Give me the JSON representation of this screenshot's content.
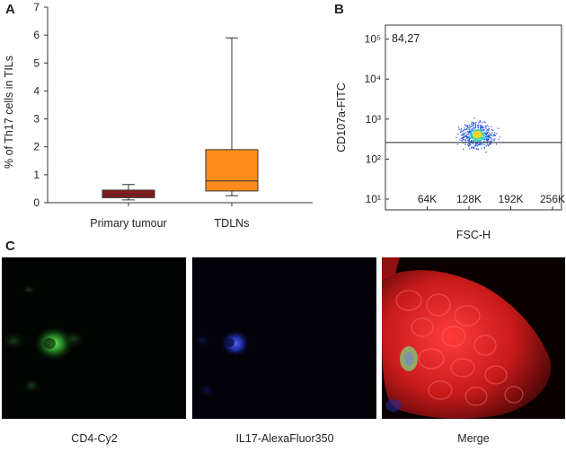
{
  "figure": {
    "panels": {
      "a": "A",
      "b": "B",
      "c": "C"
    }
  },
  "chart_data": [
    {
      "type": "boxplot",
      "panel": "A",
      "ylabel": "% of Th17 cells in TILs",
      "xlabel": "",
      "ylim": [
        0,
        7
      ],
      "yticks": [
        "0",
        "1",
        "2",
        "3",
        "4",
        "5",
        "6",
        "7"
      ],
      "categories": [
        "Primary tumour",
        "TDLNs"
      ],
      "boxes": [
        {
          "category": "Primary tumour",
          "min": 0.1,
          "q1": 0.18,
          "median": 0.3,
          "q3": 0.45,
          "max": 0.65,
          "color": "#8B1A1A"
        },
        {
          "category": "TDLNs",
          "min": 0.25,
          "q1": 0.42,
          "median": 0.78,
          "q3": 1.9,
          "max": 5.9,
          "color": "#FF8C1A"
        }
      ],
      "grid": false
    },
    {
      "type": "scatter",
      "panel": "B",
      "xlabel": "FSC-H",
      "ylabel": "CD107a-FITC",
      "xlim": [
        0,
        256000
      ],
      "ylim": [
        10,
        100000
      ],
      "yscale": "log",
      "xticks": [
        "64K",
        "128K",
        "192K",
        "256K"
      ],
      "yticks": [
        "10¹",
        "10²",
        "10³",
        "10⁴",
        "10⁵"
      ],
      "gate_threshold_y": 260,
      "gate_percentage": "84,27",
      "population_center": {
        "x": 140000,
        "y": 400
      },
      "grid": false
    }
  ],
  "micrographs": [
    {
      "caption": "CD4-Cy2",
      "stain_color": "#2EAA2E"
    },
    {
      "caption": "IL17-AlexaFluor350",
      "stain_color": "#2B3BD8"
    },
    {
      "caption": "Merge",
      "stain_color": "#D21E1E"
    }
  ]
}
